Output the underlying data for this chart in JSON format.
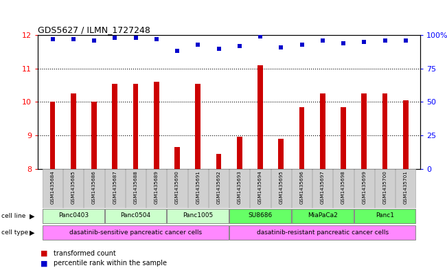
{
  "title": "GDS5627 / ILMN_1727248",
  "samples": [
    "GSM1435684",
    "GSM1435685",
    "GSM1435686",
    "GSM1435687",
    "GSM1435688",
    "GSM1435689",
    "GSM1435690",
    "GSM1435691",
    "GSM1435692",
    "GSM1435693",
    "GSM1435694",
    "GSM1435695",
    "GSM1435696",
    "GSM1435697",
    "GSM1435698",
    "GSM1435699",
    "GSM1435700",
    "GSM1435701"
  ],
  "bar_values": [
    10.0,
    10.25,
    10.0,
    10.55,
    10.55,
    10.6,
    8.65,
    10.55,
    8.45,
    8.95,
    11.1,
    8.9,
    9.85,
    10.25,
    9.85,
    10.25,
    10.25,
    10.05
  ],
  "percentile_values": [
    97,
    97,
    96,
    98,
    98,
    97,
    88,
    93,
    90,
    92,
    99,
    91,
    93,
    96,
    94,
    95,
    96,
    96
  ],
  "bar_color": "#cc0000",
  "dot_color": "#0000cc",
  "ylim_left": [
    8,
    12
  ],
  "ylim_right": [
    0,
    100
  ],
  "yticks_left": [
    8,
    9,
    10,
    11,
    12
  ],
  "yticks_right": [
    0,
    25,
    50,
    75,
    100
  ],
  "ytick_labels_right": [
    "0",
    "25",
    "50",
    "75",
    "100%"
  ],
  "cell_lines": [
    {
      "label": "Panc0403",
      "start": 0,
      "end": 2,
      "color": "#ccffcc"
    },
    {
      "label": "Panc0504",
      "start": 3,
      "end": 5,
      "color": "#ccffcc"
    },
    {
      "label": "Panc1005",
      "start": 6,
      "end": 8,
      "color": "#ccffcc"
    },
    {
      "label": "SU8686",
      "start": 9,
      "end": 11,
      "color": "#66ff66"
    },
    {
      "label": "MiaPaCa2",
      "start": 12,
      "end": 14,
      "color": "#66ff66"
    },
    {
      "label": "Panc1",
      "start": 15,
      "end": 17,
      "color": "#66ff66"
    }
  ],
  "cell_types": [
    {
      "label": "dasatinib-sensitive pancreatic cancer cells",
      "start": 0,
      "end": 8,
      "color": "#ff88ff"
    },
    {
      "label": "dasatinib-resistant pancreatic cancer cells",
      "start": 9,
      "end": 17,
      "color": "#ff88ff"
    }
  ],
  "legend_bar_label": "transformed count",
  "legend_dot_label": "percentile rank within the sample",
  "background_color": "#ffffff",
  "bar_width": 0.25
}
